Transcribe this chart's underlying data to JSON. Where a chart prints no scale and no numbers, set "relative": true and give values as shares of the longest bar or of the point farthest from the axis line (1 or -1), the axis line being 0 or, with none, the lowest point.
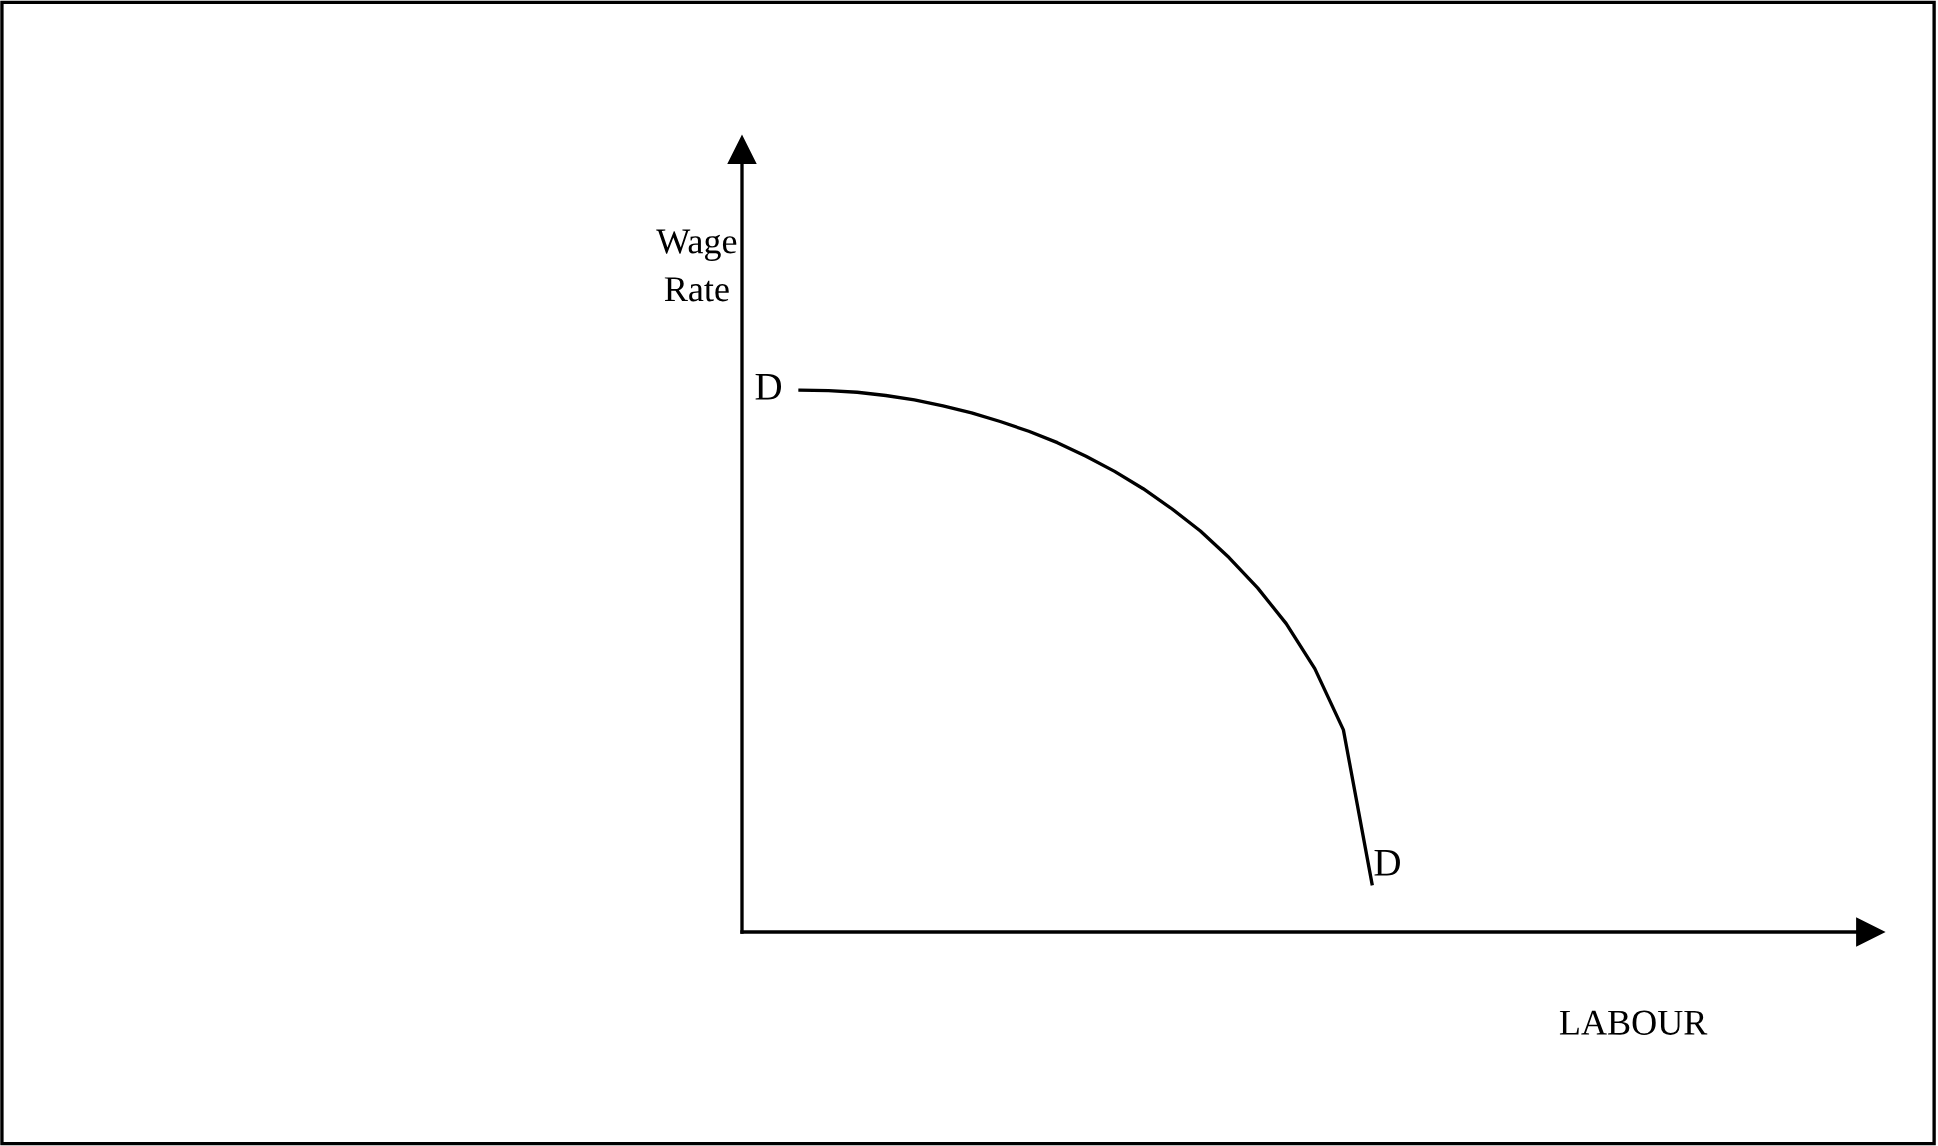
{
  "chart_data": {
    "type": "line",
    "relative": true,
    "ylabel": "Wage\nRate",
    "categories": [
      null,
      null,
      null,
      null,
      null,
      null,
      null,
      null,
      null,
      null,
      null,
      null,
      null,
      null,
      null,
      null,
      null,
      null,
      null,
      null,
      null
    ],
    "series": [
      {
        "color": "#000000",
        "values": [
          1.0,
          0.999,
          0.996,
          0.99,
          0.982,
          0.971,
          0.958,
          0.942,
          0.924,
          0.903,
          0.878,
          0.85,
          0.818,
          0.781,
          0.74,
          0.691,
          0.635,
          0.569,
          0.486,
          0.373,
          0.089
        ]
      }
    ],
    "annotations": [
      "D",
      "D",
      "LABOUR"
    ],
    "marker": "none",
    "line_style": "solid",
    "legend": false,
    "tick_labels": false
  }
}
